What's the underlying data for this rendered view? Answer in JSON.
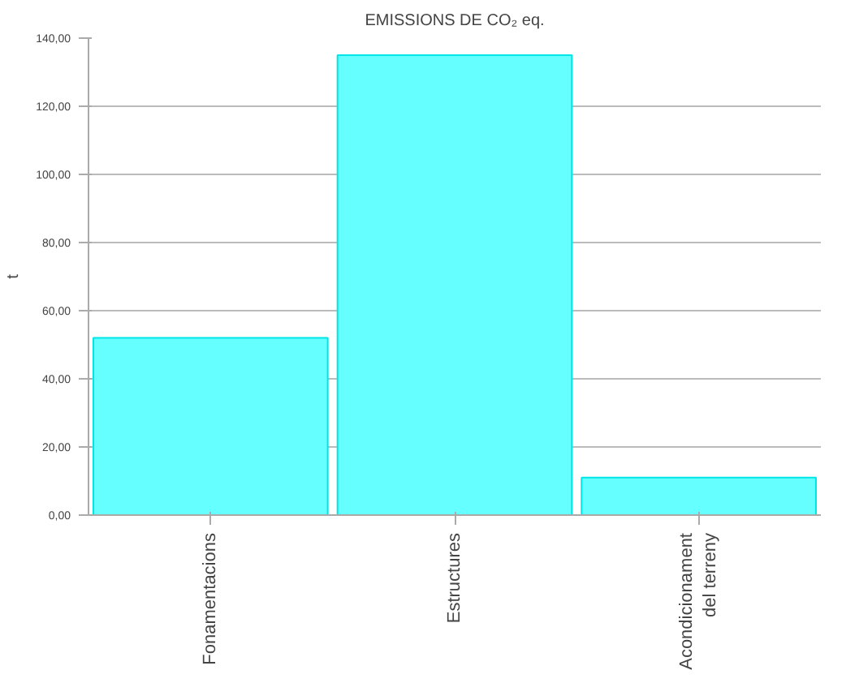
{
  "chart_data": {
    "type": "bar",
    "title": "EMISSIONS DE CO₂ eq.",
    "ylabel": "t",
    "categories": [
      "Fonamentacions",
      "Estructures",
      "Acondicionament del terreny"
    ],
    "values": [
      52,
      135,
      11
    ],
    "color": "#66ffff",
    "ylim": [
      0,
      140
    ],
    "yticks": [
      {
        "value": 0,
        "label": "0,00"
      },
      {
        "value": 20,
        "label": "20,00"
      },
      {
        "value": 40,
        "label": "40,00"
      },
      {
        "value": 60,
        "label": "60,00"
      },
      {
        "value": 80,
        "label": "80,00"
      },
      {
        "value": 100,
        "label": "100,00"
      },
      {
        "value": 120,
        "label": "120,00"
      },
      {
        "value": 140,
        "label": "140,00"
      }
    ],
    "grid": "y"
  }
}
